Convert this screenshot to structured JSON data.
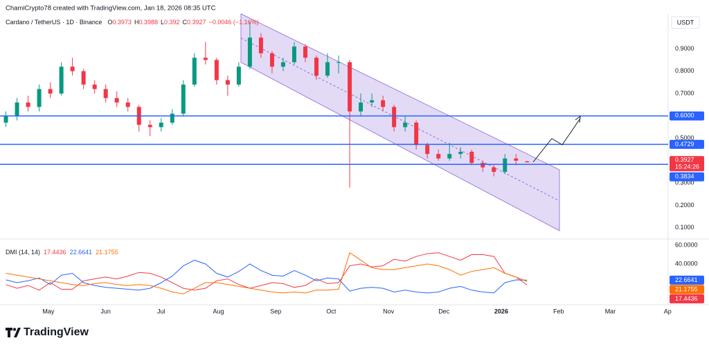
{
  "header": "ChamiCrypto78 created with TradingView.com, Jan 18, 2026 08:35 UTC",
  "price_unit": "USDT",
  "brand": "TradingView",
  "chart_data": [
    {
      "type": "candlestick",
      "title": "Cardano / TetherUS · 1D · Binance",
      "ohlc_labels": [
        "O",
        "H",
        "L",
        "C"
      ],
      "change": "−0.0046 (−1.16%)",
      "countdown": "15:24:26",
      "up_color": "#089981",
      "down_color": "#f23645",
      "x": [
        7,
        13,
        19,
        25,
        31,
        37,
        43,
        49,
        55,
        61,
        67,
        73,
        79,
        85,
        91,
        97,
        103,
        109,
        115,
        121,
        127,
        133,
        139,
        145,
        151,
        157,
        163,
        169,
        175,
        181,
        187,
        193,
        199,
        205,
        211,
        217,
        223,
        229,
        235,
        241,
        247,
        253,
        259,
        265,
        271,
        277,
        283,
        289
      ],
      "open": [
        0.57,
        0.6,
        0.66,
        0.64,
        0.72,
        0.7,
        0.82,
        0.8,
        0.74,
        0.72,
        0.68,
        0.66,
        0.64,
        0.56,
        0.55,
        0.57,
        0.61,
        0.74,
        0.86,
        0.85,
        0.76,
        0.74,
        0.82,
        0.95,
        0.88,
        0.82,
        0.84,
        0.91,
        0.86,
        0.78,
        0.84,
        0.84,
        0.62,
        0.66,
        0.67,
        0.64,
        0.55,
        0.57,
        0.47,
        0.43,
        0.41,
        0.43,
        0.44,
        0.39,
        0.37,
        0.35,
        0.41,
        0.3973
      ],
      "high": [
        0.62,
        0.68,
        0.69,
        0.74,
        0.75,
        0.84,
        0.86,
        0.81,
        0.76,
        0.74,
        0.71,
        0.68,
        0.65,
        0.58,
        0.59,
        0.63,
        0.76,
        0.88,
        0.93,
        0.86,
        0.78,
        0.84,
        1.02,
        0.97,
        0.89,
        0.86,
        0.93,
        0.92,
        0.87,
        0.88,
        0.87,
        0.85,
        0.7,
        0.7,
        0.69,
        0.65,
        0.6,
        0.58,
        0.48,
        0.45,
        0.48,
        0.46,
        0.45,
        0.4,
        0.38,
        0.43,
        0.43,
        0.3988
      ],
      "low": [
        0.55,
        0.58,
        0.62,
        0.62,
        0.68,
        0.69,
        0.78,
        0.72,
        0.7,
        0.66,
        0.64,
        0.62,
        0.53,
        0.51,
        0.53,
        0.56,
        0.6,
        0.73,
        0.83,
        0.74,
        0.69,
        0.73,
        0.81,
        0.86,
        0.79,
        0.8,
        0.83,
        0.84,
        0.76,
        0.77,
        0.79,
        0.28,
        0.6,
        0.64,
        0.62,
        0.53,
        0.53,
        0.45,
        0.41,
        0.4,
        0.4,
        0.41,
        0.38,
        0.35,
        0.33,
        0.34,
        0.38,
        0.392
      ],
      "close": [
        0.6,
        0.66,
        0.64,
        0.72,
        0.7,
        0.82,
        0.8,
        0.74,
        0.72,
        0.68,
        0.66,
        0.64,
        0.56,
        0.55,
        0.57,
        0.61,
        0.74,
        0.86,
        0.85,
        0.76,
        0.74,
        0.82,
        0.95,
        0.88,
        0.82,
        0.84,
        0.91,
        0.86,
        0.78,
        0.84,
        0.84,
        0.62,
        0.66,
        0.67,
        0.64,
        0.55,
        0.57,
        0.47,
        0.43,
        0.41,
        0.43,
        0.44,
        0.39,
        0.37,
        0.35,
        0.41,
        0.4,
        0.3927
      ],
      "xlim": [
        3.8,
        365.3
      ],
      "xticks": [
        {
          "value": 30,
          "label": "May"
        },
        {
          "value": 61,
          "label": "Jun"
        },
        {
          "value": 91,
          "label": "Jul"
        },
        {
          "value": 122,
          "label": "Aug"
        },
        {
          "value": 153,
          "label": "Sep"
        },
        {
          "value": 183,
          "label": "Oct"
        },
        {
          "value": 214,
          "label": "Nov"
        },
        {
          "value": 244,
          "label": "Dec"
        },
        {
          "value": 275,
          "label": "2026"
        },
        {
          "value": 306,
          "label": "Feb"
        },
        {
          "value": 334,
          "label": "Mar"
        },
        {
          "value": 365,
          "label": "Ap"
        }
      ],
      "ylim": [
        0.05,
        1.056
      ],
      "yticks": [
        {
          "value": 0.9,
          "label": "0.9000"
        },
        {
          "value": 0.8,
          "label": "0.8000"
        },
        {
          "value": 0.7,
          "label": "0.7000"
        },
        {
          "value": 0.5,
          "label": "0.5000"
        },
        {
          "value": 0.3,
          "label": "0.3000"
        },
        {
          "value": 0.2,
          "label": "0.2000"
        },
        {
          "value": 0.1,
          "label": "0.1000"
        }
      ],
      "hline_color": "#2962ff",
      "hlines": [
        {
          "value": 0.6,
          "label": "0.6000"
        },
        {
          "value": 0.4729,
          "label": "0.4729"
        },
        {
          "value": 0.3834,
          "label": "0.3834"
        }
      ]
    },
    {
      "type": "line",
      "title": "DMI (14, 14)",
      "ylim": [
        -3.7,
        66.7
      ],
      "yticks": [
        {
          "value": 60,
          "label": "60.0000"
        },
        {
          "value": 40,
          "label": "40.0000"
        }
      ],
      "series": [
        {
          "color": "#f23645",
          "values": [
            18,
            14,
            17,
            12,
            20,
            13,
            13,
            22,
            24,
            26,
            24,
            27,
            31,
            30,
            26,
            20,
            14,
            12,
            14,
            22,
            24,
            18,
            14,
            17,
            20,
            19,
            15,
            17,
            24,
            19,
            20,
            38,
            40,
            37,
            38,
            45,
            43,
            48,
            51,
            52,
            48,
            44,
            50,
            50,
            48,
            30,
            26,
            17.4436
          ]
        },
        {
          "color": "#2962ff",
          "values": [
            23,
            20,
            22,
            25,
            18,
            28,
            30,
            20,
            17,
            15,
            14,
            13,
            12,
            14,
            20,
            27,
            38,
            44,
            40,
            30,
            26,
            32,
            40,
            33,
            28,
            27,
            33,
            28,
            22,
            25,
            24,
            11,
            14,
            15,
            14,
            10,
            12,
            10,
            9,
            10,
            14,
            16,
            12,
            10,
            9,
            20,
            23,
            22.6641
          ]
        },
        {
          "color": "#ff6d00",
          "values": [
            30,
            28,
            26,
            24,
            22,
            20,
            18,
            17,
            19,
            20,
            18,
            17,
            18,
            17,
            14,
            10,
            8,
            14,
            20,
            20,
            18,
            16,
            14,
            12,
            10,
            9,
            10,
            9,
            12,
            12,
            13,
            52,
            44,
            36,
            34,
            34,
            36,
            38,
            40,
            38,
            34,
            28,
            32,
            34,
            36,
            30,
            26,
            21.1755
          ]
        }
      ]
    }
  ]
}
